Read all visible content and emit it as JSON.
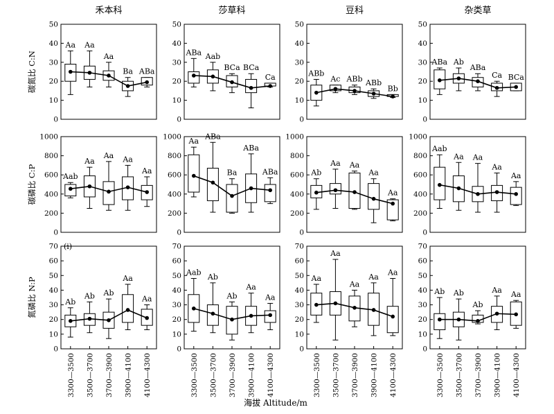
{
  "figure": {
    "x_axis_label": "海拔 Altitude/m",
    "columns": [
      "禾本科",
      "莎草科",
      "豆科",
      "杂类草"
    ],
    "rows": [
      {
        "label": "碳氮比 C:N",
        "ylim": [
          0,
          50
        ],
        "ticks": [
          0,
          10,
          20,
          30,
          40,
          50
        ]
      },
      {
        "label": "碳磷比 C:P",
        "ylim": [
          0,
          1000
        ],
        "ticks": [
          0,
          200,
          400,
          600,
          800,
          1000
        ]
      },
      {
        "label": "氮磷比 N:P",
        "ylim": [
          0,
          70
        ],
        "ticks": [
          0,
          10,
          20,
          30,
          40,
          50,
          60,
          70
        ]
      }
    ],
    "categories": [
      "3300—3500",
      "3500—3700",
      "3700—3900",
      "3900—4100",
      "4100—4300"
    ],
    "panel_label": "(i)"
  },
  "chart_data": [
    {
      "type": "box",
      "row": 0,
      "col": 0,
      "boxes": [
        {
          "lw": 13,
          "q1": 20,
          "q3": 29,
          "uw": 36,
          "mean": 25,
          "sig": "Aa"
        },
        {
          "lw": 17,
          "q1": 21,
          "q3": 28,
          "uw": 36,
          "mean": 24.5,
          "sig": "Aa"
        },
        {
          "lw": 17,
          "q1": 20.5,
          "q3": 25.5,
          "uw": 30,
          "mean": 23,
          "sig": "Aa"
        },
        {
          "lw": 12,
          "q1": 15,
          "q3": 20,
          "uw": 22,
          "mean": 17.5,
          "sig": "Ba"
        },
        {
          "lw": 17,
          "q1": 18,
          "q3": 22,
          "uw": 22,
          "mean": 19.5,
          "sig": "ABa"
        }
      ]
    },
    {
      "type": "box",
      "row": 0,
      "col": 1,
      "boxes": [
        {
          "lw": 17,
          "q1": 19,
          "q3": 25,
          "uw": 32,
          "mean": 23,
          "sig": "ABa"
        },
        {
          "lw": 15,
          "q1": 19,
          "q3": 26,
          "uw": 30,
          "mean": 22.5,
          "sig": "Aab"
        },
        {
          "lw": 14,
          "q1": 17,
          "q3": 23,
          "uw": 24,
          "mean": 19.5,
          "sig": "BCa"
        },
        {
          "lw": 6,
          "q1": 14,
          "q3": 21,
          "uw": 24,
          "mean": 16.5,
          "sig": "BCa"
        },
        {
          "lw": 17,
          "q1": 17.5,
          "q3": 19,
          "uw": 19,
          "mean": 17.5,
          "sig": "Ca"
        }
      ]
    },
    {
      "type": "box",
      "row": 0,
      "col": 2,
      "boxes": [
        {
          "lw": 7,
          "q1": 10,
          "q3": 18,
          "uw": 21,
          "mean": 14,
          "sig": "ABb"
        },
        {
          "lw": 14,
          "q1": 15,
          "q3": 18,
          "uw": 18,
          "mean": 16,
          "sig": "Ac"
        },
        {
          "lw": 13,
          "q1": 14,
          "q3": 17,
          "uw": 18,
          "mean": 15,
          "sig": "ABb"
        },
        {
          "lw": 11,
          "q1": 12,
          "q3": 15,
          "uw": 16,
          "mean": 13.5,
          "sig": "ABb"
        },
        {
          "lw": 11.5,
          "q1": 12,
          "q3": 13,
          "uw": 13,
          "mean": 12,
          "sig": "Bb"
        }
      ]
    },
    {
      "type": "box",
      "row": 0,
      "col": 3,
      "boxes": [
        {
          "lw": 13,
          "q1": 16,
          "q3": 26,
          "uw": 27,
          "mean": 20.5,
          "sig": "ABa"
        },
        {
          "lw": 15,
          "q1": 19,
          "q3": 24,
          "uw": 27,
          "mean": 21.5,
          "sig": "Ab"
        },
        {
          "lw": 15,
          "q1": 17,
          "q3": 22,
          "uw": 24,
          "mean": 20,
          "sig": "ABa"
        },
        {
          "lw": 12,
          "q1": 15,
          "q3": 19,
          "uw": 20,
          "mean": 16.5,
          "sig": "Ca"
        },
        {
          "lw": 15,
          "q1": 15,
          "q3": 19,
          "uw": 19,
          "mean": 17,
          "sig": "BCa"
        }
      ]
    },
    {
      "type": "box",
      "row": 1,
      "col": 0,
      "boxes": [
        {
          "lw": 360,
          "q1": 380,
          "q3": 500,
          "uw": 520,
          "mean": 455,
          "sig": "Aab"
        },
        {
          "lw": 250,
          "q1": 370,
          "q3": 590,
          "uw": 680,
          "mean": 480,
          "sig": "Aa"
        },
        {
          "lw": 230,
          "q1": 290,
          "q3": 530,
          "uw": 740,
          "mean": 425,
          "sig": "Aa"
        },
        {
          "lw": 230,
          "q1": 340,
          "q3": 580,
          "uw": 700,
          "mean": 470,
          "sig": "Aa"
        },
        {
          "lw": 270,
          "q1": 340,
          "q3": 490,
          "uw": 580,
          "mean": 420,
          "sig": "Aa"
        }
      ]
    },
    {
      "type": "box",
      "row": 1,
      "col": 1,
      "boxes": [
        {
          "lw": 370,
          "q1": 420,
          "q3": 810,
          "uw": 890,
          "mean": 590,
          "sig": "Aa"
        },
        {
          "lw": 210,
          "q1": 330,
          "q3": 670,
          "uw": 940,
          "mean": 520,
          "sig": "ABa"
        },
        {
          "lw": 200,
          "q1": 210,
          "q3": 500,
          "uw": 560,
          "mean": 380,
          "sig": "Ba"
        },
        {
          "lw": 210,
          "q1": 310,
          "q3": 610,
          "uw": 820,
          "mean": 460,
          "sig": "ABa"
        },
        {
          "lw": 300,
          "q1": 320,
          "q3": 500,
          "uw": 570,
          "mean": 440,
          "sig": "ABa"
        }
      ]
    },
    {
      "type": "box",
      "row": 1,
      "col": 2,
      "boxes": [
        {
          "lw": 240,
          "q1": 360,
          "q3": 490,
          "uw": 560,
          "mean": 415,
          "sig": "Ab"
        },
        {
          "lw": 250,
          "q1": 400,
          "q3": 510,
          "uw": 660,
          "mean": 440,
          "sig": "Aa"
        },
        {
          "lw": 240,
          "q1": 250,
          "q3": 620,
          "uw": 640,
          "mean": 420,
          "sig": "Aa"
        },
        {
          "lw": 100,
          "q1": 240,
          "q3": 510,
          "uw": 560,
          "mean": 350,
          "sig": "Aa"
        },
        {
          "lw": 120,
          "q1": 130,
          "q3": 340,
          "uw": 350,
          "mean": 300,
          "sig": "Aa"
        }
      ]
    },
    {
      "type": "box",
      "row": 1,
      "col": 3,
      "boxes": [
        {
          "lw": 250,
          "q1": 340,
          "q3": 680,
          "uw": 810,
          "mean": 495,
          "sig": "Aab"
        },
        {
          "lw": 230,
          "q1": 320,
          "q3": 590,
          "uw": 730,
          "mean": 460,
          "sig": "Aa"
        },
        {
          "lw": 210,
          "q1": 320,
          "q3": 480,
          "uw": 720,
          "mean": 400,
          "sig": "Aa"
        },
        {
          "lw": 210,
          "q1": 330,
          "q3": 490,
          "uw": 620,
          "mean": 420,
          "sig": "Aa"
        },
        {
          "lw": 280,
          "q1": 290,
          "q3": 470,
          "uw": 530,
          "mean": 400,
          "sig": "Aa"
        }
      ]
    },
    {
      "type": "box",
      "row": 2,
      "col": 0,
      "boxes": [
        {
          "lw": 8,
          "q1": 15,
          "q3": 23,
          "uw": 28,
          "mean": 19,
          "sig": "Ab"
        },
        {
          "lw": 11,
          "q1": 16,
          "q3": 24,
          "uw": 32,
          "mean": 20.5,
          "sig": "Ab"
        },
        {
          "lw": 7,
          "q1": 14,
          "q3": 25,
          "uw": 34,
          "mean": 19.5,
          "sig": "Ab"
        },
        {
          "lw": 13,
          "q1": 18,
          "q3": 37,
          "uw": 44,
          "mean": 26.5,
          "sig": "Aa"
        },
        {
          "lw": 13,
          "q1": 16,
          "q3": 27,
          "uw": 30,
          "mean": 21,
          "sig": "Aa"
        }
      ]
    },
    {
      "type": "box",
      "row": 2,
      "col": 1,
      "boxes": [
        {
          "lw": 12,
          "q1": 18,
          "q3": 37,
          "uw": 48,
          "mean": 27.5,
          "sig": "Aab"
        },
        {
          "lw": 11,
          "q1": 16,
          "q3": 30,
          "uw": 45,
          "mean": 24,
          "sig": "Ab"
        },
        {
          "lw": 6,
          "q1": 10,
          "q3": 29,
          "uw": 32,
          "mean": 20,
          "sig": "Ab"
        },
        {
          "lw": 11,
          "q1": 16,
          "q3": 29,
          "uw": 38,
          "mean": 22.5,
          "sig": "Aa"
        },
        {
          "lw": 13,
          "q1": 18,
          "q3": 26,
          "uw": 31,
          "mean": 23,
          "sig": "Aa"
        }
      ]
    },
    {
      "type": "box",
      "row": 2,
      "col": 2,
      "boxes": [
        {
          "lw": 18,
          "q1": 23,
          "q3": 38,
          "uw": 44,
          "mean": 30,
          "sig": "Aa"
        },
        {
          "lw": 6,
          "q1": 23,
          "q3": 39,
          "uw": 61,
          "mean": 31,
          "sig": "Aa"
        },
        {
          "lw": 15,
          "q1": 19,
          "q3": 36,
          "uw": 40,
          "mean": 28,
          "sig": "Aa"
        },
        {
          "lw": 9,
          "q1": 16,
          "q3": 38,
          "uw": 45,
          "mean": 26.5,
          "sig": "Aa"
        },
        {
          "lw": 9,
          "q1": 11,
          "q3": 29,
          "uw": 48,
          "mean": 22,
          "sig": "Aa"
        }
      ]
    },
    {
      "type": "box",
      "row": 2,
      "col": 3,
      "boxes": [
        {
          "lw": 7,
          "q1": 13,
          "q3": 24,
          "uw": 35,
          "mean": 20,
          "sig": "Ab"
        },
        {
          "lw": 6,
          "q1": 15,
          "q3": 25,
          "uw": 34,
          "mean": 20,
          "sig": "Ab"
        },
        {
          "lw": 17,
          "q1": 18,
          "q3": 23,
          "uw": 26,
          "mean": 19,
          "sig": "Ab"
        },
        {
          "lw": 13,
          "q1": 18,
          "q3": 29,
          "uw": 36,
          "mean": 24,
          "sig": "Aa"
        },
        {
          "lw": 14,
          "q1": 16,
          "q3": 32,
          "uw": 33,
          "mean": 23.5,
          "sig": "Aa"
        }
      ]
    }
  ]
}
